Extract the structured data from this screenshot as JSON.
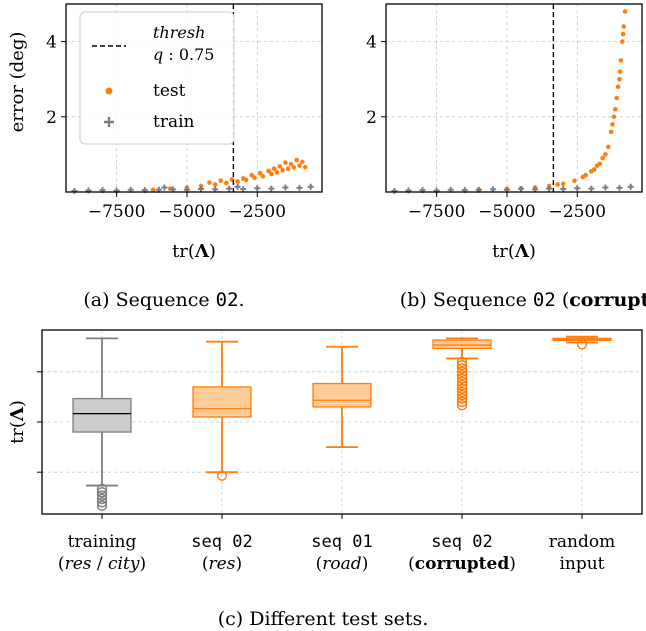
{
  "chart_data": [
    {
      "id": "a",
      "type": "scatter",
      "caption_parts": [
        "(a) Sequence ",
        "02",
        "."
      ],
      "xlabel": "tr(Λ)",
      "ylabel": "error (deg)",
      "xlim": [
        -9300,
        -200
      ],
      "ylim": [
        0,
        5.0
      ],
      "xticks": [
        -7500,
        -5000,
        -2500
      ],
      "xtick_labels": [
        "−7500",
        "−5000",
        "−2500"
      ],
      "yticks": [
        2,
        4
      ],
      "ytick_labels": [
        "2",
        "4"
      ],
      "grid": true,
      "threshold": {
        "x": -3350,
        "style": "dashed",
        "label_lines": [
          "thresh",
          "q : 0.75"
        ]
      },
      "legend": {
        "placement": "top-left",
        "entries": [
          "test",
          "train"
        ]
      },
      "series": [
        {
          "name": "test",
          "color": "#ff7f0e",
          "marker": "circle",
          "points": [
            [
              -6200,
              0.06
            ],
            [
              -5600,
              0.09
            ],
            [
              -5000,
              0.12
            ],
            [
              -4500,
              0.16
            ],
            [
              -4000,
              0.2
            ],
            [
              -3600,
              0.24
            ],
            [
              -3200,
              0.28
            ],
            [
              -2900,
              0.32
            ],
            [
              -2600,
              0.38
            ],
            [
              -2300,
              0.42
            ],
            [
              -2000,
              0.48
            ],
            [
              -1800,
              0.52
            ],
            [
              -1600,
              0.58
            ],
            [
              -1400,
              0.62
            ],
            [
              -1200,
              0.65
            ],
            [
              -1000,
              0.7
            ],
            [
              -800,
              0.66
            ],
            [
              -3800,
              0.3
            ],
            [
              -3000,
              0.36
            ],
            [
              -2400,
              0.5
            ],
            [
              -2100,
              0.56
            ],
            [
              -1700,
              0.68
            ],
            [
              -1300,
              0.74
            ],
            [
              -900,
              0.8
            ],
            [
              -1100,
              0.85
            ],
            [
              -1500,
              0.78
            ],
            [
              -2700,
              0.45
            ],
            [
              -3400,
              0.33
            ],
            [
              -4200,
              0.25
            ],
            [
              -1900,
              0.62
            ]
          ]
        },
        {
          "name": "train",
          "color": "#7f7f7f",
          "marker": "plus",
          "points": [
            [
              -9000,
              0.03
            ],
            [
              -8500,
              0.04
            ],
            [
              -8000,
              0.05
            ],
            [
              -7500,
              0.04
            ],
            [
              -7000,
              0.06
            ],
            [
              -6500,
              0.05
            ],
            [
              -6000,
              0.06
            ],
            [
              -5500,
              0.07
            ],
            [
              -5000,
              0.06
            ],
            [
              -4500,
              0.08
            ],
            [
              -4000,
              0.07
            ],
            [
              -3500,
              0.09
            ],
            [
              -3000,
              0.08
            ],
            [
              -2500,
              0.1
            ],
            [
              -2000,
              0.09
            ],
            [
              -1500,
              0.12
            ],
            [
              -1000,
              0.11
            ],
            [
              -600,
              0.14
            ],
            [
              -5800,
              0.12
            ],
            [
              -3200,
              0.14
            ]
          ]
        }
      ]
    },
    {
      "id": "b",
      "type": "scatter",
      "caption_parts": [
        "(b) Sequence ",
        "02",
        " (",
        "corrupted",
        ")."
      ],
      "xlabel": "tr(Λ)",
      "ylabel": "",
      "xlim": [
        -9300,
        -200
      ],
      "ylim": [
        0,
        5.0
      ],
      "xticks": [
        -7500,
        -5000,
        -2500
      ],
      "xtick_labels": [
        "−7500",
        "−5000",
        "−2500"
      ],
      "yticks": [
        2,
        4
      ],
      "ytick_labels": [
        "2",
        "4"
      ],
      "grid": true,
      "threshold": {
        "x": -3350,
        "style": "dashed"
      },
      "series": [
        {
          "name": "test",
          "color": "#ff7f0e",
          "marker": "circle",
          "points": [
            [
              -5000,
              0.08
            ],
            [
              -4000,
              0.12
            ],
            [
              -3500,
              0.16
            ],
            [
              -3000,
              0.22
            ],
            [
              -2600,
              0.3
            ],
            [
              -2300,
              0.4
            ],
            [
              -2000,
              0.55
            ],
            [
              -1800,
              0.7
            ],
            [
              -1600,
              0.9
            ],
            [
              -1400,
              1.2
            ],
            [
              -1300,
              1.6
            ],
            [
              -1200,
              2.0
            ],
            [
              -1100,
              2.5
            ],
            [
              -1000,
              3.0
            ],
            [
              -950,
              3.5
            ],
            [
              -900,
              4.0
            ],
            [
              -850,
              4.4
            ],
            [
              -800,
              4.8
            ],
            [
              -1500,
              1.0
            ],
            [
              -1250,
              1.8
            ],
            [
              -1050,
              2.8
            ],
            [
              -980,
              3.2
            ],
            [
              -870,
              4.2
            ],
            [
              -1700,
              0.75
            ],
            [
              -1150,
              2.2
            ],
            [
              -2200,
              0.45
            ],
            [
              -1900,
              0.6
            ],
            [
              -3200,
              0.2
            ],
            [
              -4500,
              0.1
            ],
            [
              -6000,
              0.06
            ]
          ]
        },
        {
          "name": "train",
          "color": "#7f7f7f",
          "marker": "plus",
          "points": [
            [
              -9000,
              0.03
            ],
            [
              -8500,
              0.04
            ],
            [
              -8000,
              0.05
            ],
            [
              -7500,
              0.04
            ],
            [
              -7000,
              0.06
            ],
            [
              -6500,
              0.05
            ],
            [
              -6000,
              0.06
            ],
            [
              -5500,
              0.07
            ],
            [
              -5000,
              0.06
            ],
            [
              -4500,
              0.08
            ],
            [
              -4000,
              0.07
            ],
            [
              -3500,
              0.09
            ],
            [
              -3000,
              0.08
            ],
            [
              -2500,
              0.1
            ],
            [
              -2000,
              0.09
            ],
            [
              -1500,
              0.12
            ],
            [
              -1000,
              0.11
            ],
            [
              -600,
              0.14
            ]
          ]
        }
      ]
    },
    {
      "id": "c",
      "type": "box",
      "caption": "(c) Different test sets.",
      "ylabel": "tr(Λ)",
      "ylim": [
        -0.05,
        1.05
      ],
      "ygrid": [
        0.2,
        0.5,
        0.8
      ],
      "categories": [
        {
          "lines": [
            [
              "training",
              ""
            ],
            [
              "(",
              ""
            ],
            [
              "res",
              "it"
            ],
            [
              " / ",
              ""
            ],
            [
              "city",
              "it"
            ],
            [
              ")",
              ""
            ]
          ]
        },
        {
          "lines": [
            [
              "seq 02",
              "mono"
            ],
            [
              "(",
              ""
            ],
            [
              "res",
              "it"
            ],
            [
              ")",
              ""
            ]
          ]
        },
        {
          "lines": [
            [
              "seq 01",
              "mono"
            ],
            [
              "(",
              ""
            ],
            [
              "road",
              "it"
            ],
            [
              ")",
              ""
            ]
          ]
        },
        {
          "lines": [
            [
              "seq 02",
              "mono"
            ],
            [
              "(",
              ""
            ],
            [
              "corrupted",
              "bd"
            ],
            [
              ")",
              ""
            ]
          ]
        },
        {
          "lines": [
            [
              "random",
              ""
            ],
            [
              "input",
              ""
            ]
          ]
        }
      ],
      "boxes": [
        {
          "color": "#7f7f7f",
          "fill": "#cccccc",
          "whisker_low": 0.12,
          "q1": 0.44,
          "median": 0.55,
          "q3": 0.64,
          "whisker_high": 1.0,
          "outliers": [
            0.0,
            0.02,
            0.04,
            0.06,
            0.08,
            0.1
          ]
        },
        {
          "color": "#ff7f0e",
          "fill": "#ffcc99",
          "whisker_low": 0.2,
          "q1": 0.53,
          "median": 0.58,
          "q3": 0.71,
          "whisker_high": 0.98,
          "outliers": [
            0.18
          ]
        },
        {
          "color": "#ff7f0e",
          "fill": "#ffcc99",
          "whisker_low": 0.35,
          "q1": 0.59,
          "median": 0.63,
          "q3": 0.73,
          "whisker_high": 0.95,
          "outliers": []
        },
        {
          "color": "#ff7f0e",
          "fill": "#ffcc99",
          "whisker_low": 0.88,
          "q1": 0.94,
          "median": 0.96,
          "q3": 0.99,
          "whisker_high": 1.0,
          "outliers": [
            0.6,
            0.62,
            0.64,
            0.66,
            0.68,
            0.7,
            0.72,
            0.74,
            0.76,
            0.78,
            0.8,
            0.82,
            0.84,
            0.86
          ]
        },
        {
          "color": "#ff7f0e",
          "fill": "#ffcc99",
          "whisker_low": 0.975,
          "q1": 0.99,
          "median": 0.995,
          "q3": 1.0,
          "whisker_high": 1.01,
          "outliers": [
            0.965
          ]
        }
      ]
    }
  ]
}
